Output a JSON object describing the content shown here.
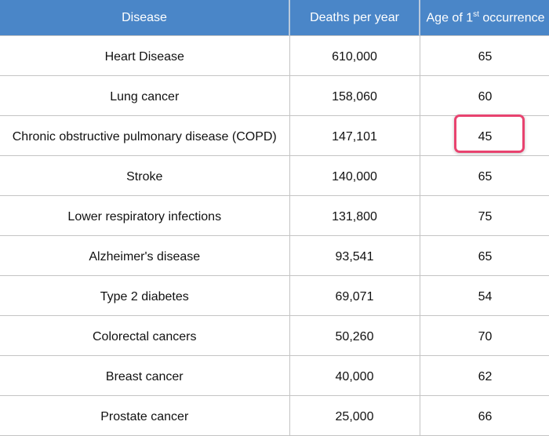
{
  "table": {
    "headers": {
      "disease": "Disease",
      "deaths": "Deaths per year",
      "age_prefix": "Age of 1",
      "age_sup": "st",
      "age_suffix": " occurrence"
    },
    "rows": [
      {
        "disease": "Heart Disease",
        "deaths": "610,000",
        "age": "65"
      },
      {
        "disease": "Lung cancer",
        "deaths": "158,060",
        "age": "60"
      },
      {
        "disease": "Chronic obstructive pulmonary disease (COPD)",
        "deaths": "147,101",
        "age": "45"
      },
      {
        "disease": "Stroke",
        "deaths": "140,000",
        "age": "65"
      },
      {
        "disease": "Lower respiratory infections",
        "deaths": "131,800",
        "age": "75"
      },
      {
        "disease": "Alzheimer's disease",
        "deaths": "93,541",
        "age": "65"
      },
      {
        "disease": "Type 2 diabetes",
        "deaths": "69,071",
        "age": "54"
      },
      {
        "disease": "Colorectal cancers",
        "deaths": "50,260",
        "age": "70"
      },
      {
        "disease": "Breast cancer",
        "deaths": "40,000",
        "age": "62"
      },
      {
        "disease": "Prostate cancer",
        "deaths": "25,000",
        "age": "66"
      }
    ],
    "highlighted_row": 2,
    "colors": {
      "header": "#4a86c8",
      "highlight": "#e8436f"
    }
  }
}
